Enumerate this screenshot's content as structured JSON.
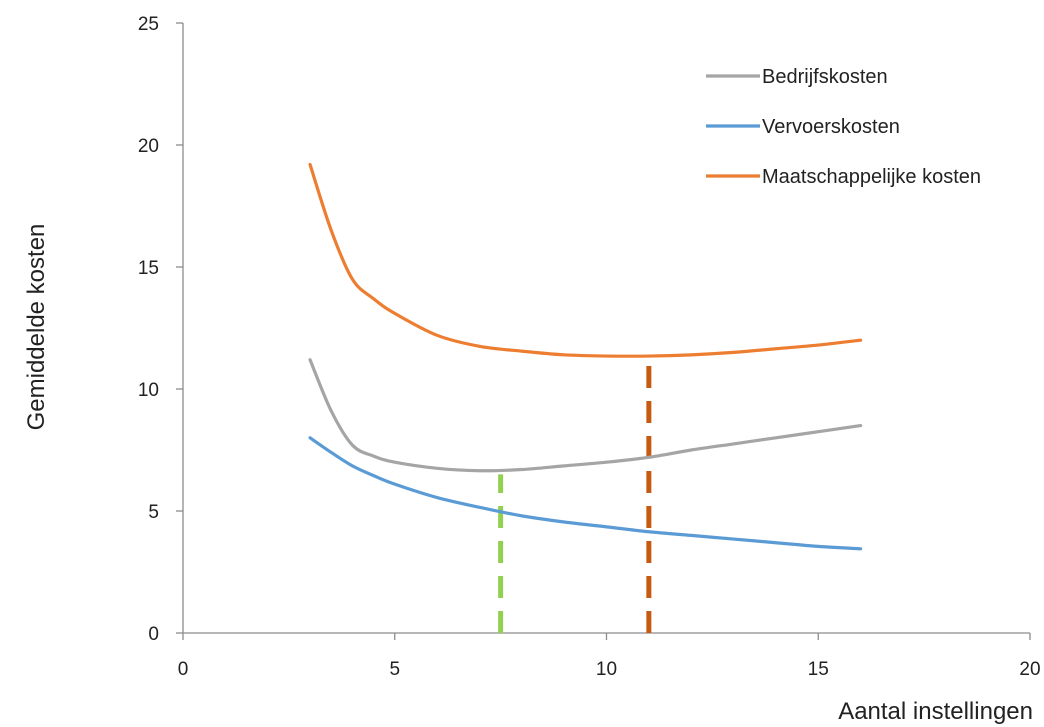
{
  "chart_data": {
    "type": "line",
    "title": "",
    "xlabel": "Aantal instellingen",
    "ylabel": "Gemiddelde kosten",
    "xlim": [
      0,
      20
    ],
    "ylim": [
      0,
      25
    ],
    "x_ticks": [
      0,
      5,
      10,
      15,
      20
    ],
    "y_ticks": [
      0,
      5,
      10,
      15,
      20,
      25
    ],
    "grid": false,
    "legend_position": "top-right",
    "series": [
      {
        "name": "Bedrijfskosten",
        "color": "#a5a5a5",
        "x": [
          3,
          3.5,
          4,
          4.5,
          5,
          6,
          7,
          8,
          9,
          10,
          11,
          12,
          13,
          14,
          15,
          16
        ],
        "y": [
          11.2,
          9.1,
          7.7,
          7.25,
          7.0,
          6.75,
          6.65,
          6.7,
          6.85,
          7.0,
          7.2,
          7.5,
          7.75,
          8.0,
          8.25,
          8.5
        ]
      },
      {
        "name": "Vervoerskosten",
        "color": "#5b9bd5",
        "x": [
          3,
          3.5,
          4,
          4.5,
          5,
          6,
          7,
          8,
          9,
          10,
          11,
          12,
          13,
          14,
          15,
          16
        ],
        "y": [
          8.0,
          7.4,
          6.85,
          6.45,
          6.1,
          5.55,
          5.15,
          4.8,
          4.55,
          4.35,
          4.15,
          4.0,
          3.85,
          3.7,
          3.55,
          3.45
        ]
      },
      {
        "name": "Maatschappelijke kosten",
        "color": "#ed7d31",
        "x": [
          3,
          3.5,
          4,
          4.5,
          5,
          6,
          7,
          8,
          9,
          10,
          11,
          12,
          13,
          14,
          15,
          16
        ],
        "y": [
          19.2,
          16.5,
          14.5,
          13.7,
          13.1,
          12.2,
          11.75,
          11.55,
          11.4,
          11.35,
          11.35,
          11.4,
          11.5,
          11.65,
          11.8,
          12.0
        ]
      }
    ],
    "reference_lines": [
      {
        "x": 7.5,
        "y_top": 6.5,
        "color": "#92d050",
        "style": "dashed"
      },
      {
        "x": 11,
        "y_top": 11.4,
        "color": "#c55a11",
        "style": "dashed"
      }
    ]
  }
}
